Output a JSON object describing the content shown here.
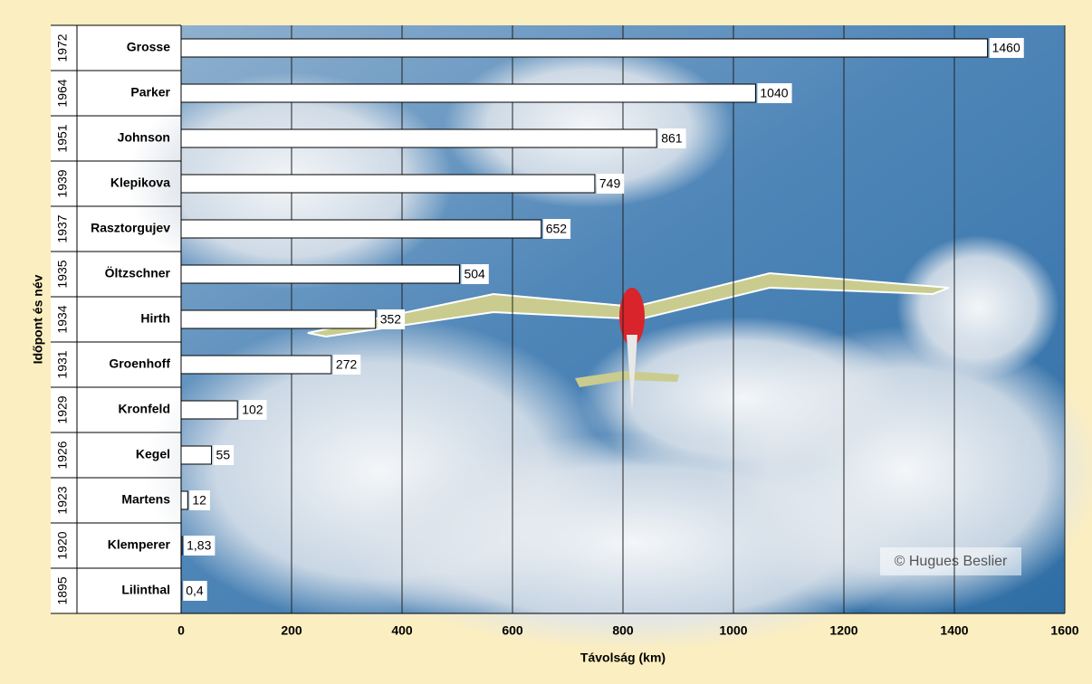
{
  "chart_data": {
    "type": "bar",
    "x_label": "Távolság (km)",
    "y_label": "Időpont és név",
    "years": [
      "1972",
      "1964",
      "1951",
      "1939",
      "1937",
      "1935",
      "1934",
      "1931",
      "1929",
      "1926",
      "1923",
      "1920",
      "1895"
    ],
    "categories": [
      "Grosse",
      "Parker",
      "Johnson",
      "Klepikova",
      "Rasztorgujev",
      "Öltzschner",
      "Hirth",
      "Groenhoff",
      "Kronfeld",
      "Kegel",
      "Martens",
      "Klemperer",
      "Lilinthal"
    ],
    "values": [
      1460,
      1040,
      861,
      749,
      652,
      504,
      352,
      272,
      102,
      55,
      12,
      1.83,
      0.4
    ],
    "value_labels": [
      "1460",
      "1040",
      "861",
      "749",
      "652",
      "504",
      "352",
      "272",
      "102",
      "55",
      "12",
      "1,83",
      "0,4"
    ],
    "color": "#ffffff",
    "xlim": [
      0,
      1600
    ],
    "xticks": [
      0,
      200,
      400,
      600,
      800,
      1000,
      1200,
      1400,
      1600
    ],
    "grid": true,
    "credit": "© Hugues Beslier"
  }
}
